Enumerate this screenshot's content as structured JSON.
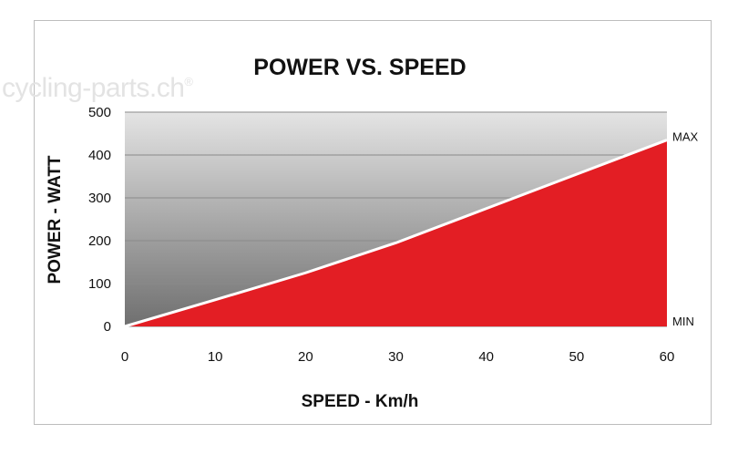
{
  "watermark": {
    "text": "cycling-parts.ch",
    "mark": "®"
  },
  "chart_data": {
    "type": "area",
    "title": "POWER VS. SPEED",
    "xlabel": "SPEED - Km/h",
    "ylabel": "POWER - WATT",
    "xlim": [
      0,
      60
    ],
    "ylim": [
      0,
      500
    ],
    "xticks": [
      0,
      10,
      20,
      30,
      40,
      50,
      60
    ],
    "yticks": [
      0,
      100,
      200,
      300,
      400,
      500
    ],
    "grid": true,
    "edge_labels": {
      "max": "MAX",
      "min": "MIN"
    },
    "colors": {
      "fill": "#e31e24",
      "line": "#ffffff",
      "bg_top": "#e4e4e4",
      "bg_bottom": "#6f6f6f",
      "grid": "#8a8a8a"
    },
    "series": [
      {
        "x": [
          0,
          10,
          20,
          30,
          40,
          50,
          60
        ],
        "values": [
          0,
          62,
          125,
          195,
          275,
          355,
          435
        ]
      }
    ]
  }
}
